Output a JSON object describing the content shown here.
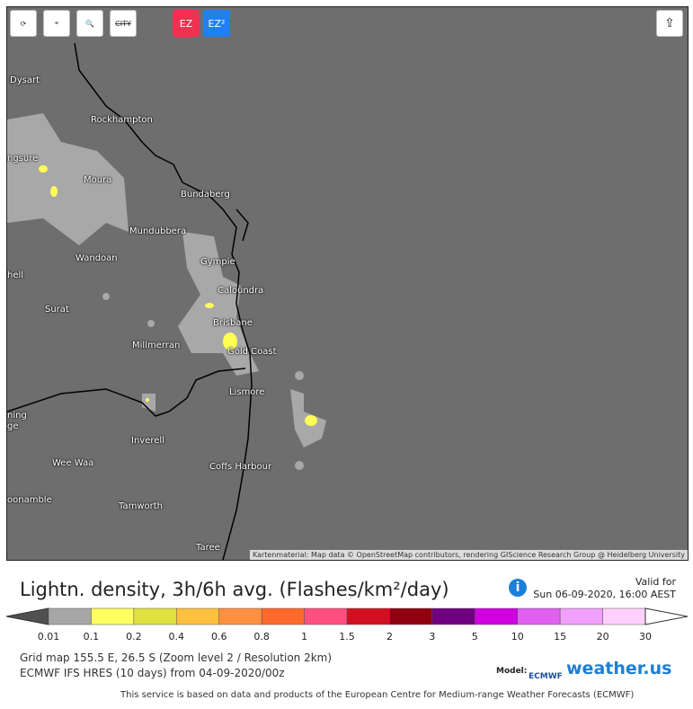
{
  "toolbar": {
    "city": "CITY",
    "ez": "EZ",
    "ez2": "EZ²"
  },
  "cities": [
    "Dysart",
    "Rockhampton",
    "ngsure",
    "Moura",
    "Bundaberg",
    "Mundubbera",
    "Wandoan",
    "Gympie",
    "hell",
    "Caloundra",
    "Surat",
    "Brisbane",
    "Millmerran",
    "Gold Coast",
    "Lismore",
    "ning",
    "ge",
    "Inverell",
    "Wee Waa",
    "Coffs Harbour",
    "oonamble",
    "Tamworth",
    "Taree"
  ],
  "attribution": "Kartenmaterial: Map data © OpenStreetMap contributors, rendering GIScience Research Group @ Heidelberg University",
  "header": {
    "title": "Lightn. density, 3h/6h avg. (Flashes/km²/day)",
    "valid_label": "Valid for",
    "valid_time": "Sun 06-09-2020, 16:00 AEST"
  },
  "legend": {
    "labels": [
      "0.01",
      "0.1",
      "0.2",
      "0.4",
      "0.6",
      "0.8",
      "1",
      "1.5",
      "2",
      "3",
      "5",
      "10",
      "15",
      "20",
      "30"
    ]
  },
  "info": {
    "grid": "Grid map 155.5 E, 26.5 S (Zoom level 2 / Resolution 2km)",
    "model_run": "ECMWF IFS HRES (10 days) from 04-09-2020/00z",
    "model_label": "Model:",
    "ecmwf": "ECMWF",
    "brand": "weather.us"
  },
  "footer": "This service is based on data and products of the European Centre for Medium-range Weather Forecasts (ECMWF)"
}
